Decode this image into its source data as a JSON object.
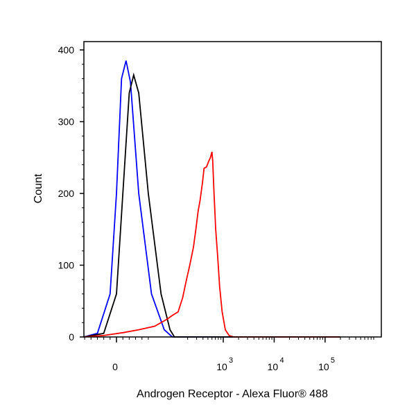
{
  "chart_data": {
    "type": "line",
    "title": "",
    "xlabel": "Androgen Receptor - Alexa Fluor® 488",
    "ylabel": "Count",
    "x_scale": "biexponential",
    "ylim": [
      0,
      400
    ],
    "x_ticks": [
      {
        "value": 0,
        "label": "0",
        "exponent": ""
      },
      {
        "value": 1000,
        "label": "10",
        "exponent": "3"
      },
      {
        "value": 10000,
        "label": "10",
        "exponent": "4"
      },
      {
        "value": 100000,
        "label": "10",
        "exponent": "5"
      }
    ],
    "y_ticks": [
      0,
      100,
      200,
      300,
      400
    ],
    "grid": false,
    "legend": "none",
    "series": [
      {
        "color": "#0000ff",
        "points": [
          [
            -60,
            0
          ],
          [
            -30,
            5
          ],
          [
            -10,
            60
          ],
          [
            0,
            200
          ],
          [
            8,
            360
          ],
          [
            15,
            385
          ],
          [
            22,
            355
          ],
          [
            35,
            200
          ],
          [
            55,
            60
          ],
          [
            75,
            10
          ],
          [
            100,
            0
          ],
          [
            1000,
            0
          ],
          [
            100000,
            0
          ],
          [
            200000,
            0
          ]
        ]
      },
      {
        "color": "#000000",
        "points": [
          [
            -60,
            0
          ],
          [
            -20,
            5
          ],
          [
            0,
            60
          ],
          [
            10,
            200
          ],
          [
            20,
            340
          ],
          [
            27,
            365
          ],
          [
            35,
            340
          ],
          [
            50,
            200
          ],
          [
            70,
            60
          ],
          [
            90,
            10
          ],
          [
            110,
            0
          ],
          [
            1000,
            0
          ],
          [
            100000,
            0
          ],
          [
            200000,
            0
          ]
        ]
      },
      {
        "color": "#ff0000",
        "points": [
          [
            -60,
            0
          ],
          [
            -20,
            2
          ],
          [
            10,
            6
          ],
          [
            35,
            10
          ],
          [
            60,
            15
          ],
          [
            80,
            25
          ],
          [
            100,
            30
          ],
          [
            130,
            35
          ],
          [
            160,
            55
          ],
          [
            190,
            80
          ],
          [
            220,
            100
          ],
          [
            260,
            125
          ],
          [
            290,
            150
          ],
          [
            320,
            175
          ],
          [
            350,
            190
          ],
          [
            390,
            215
          ],
          [
            420,
            235
          ],
          [
            470,
            237
          ],
          [
            520,
            245
          ],
          [
            560,
            250
          ],
          [
            600,
            258
          ],
          [
            620,
            245
          ],
          [
            660,
            200
          ],
          [
            710,
            150
          ],
          [
            780,
            110
          ],
          [
            850,
            70
          ],
          [
            950,
            35
          ],
          [
            1100,
            10
          ],
          [
            1300,
            2
          ],
          [
            1600,
            0
          ],
          [
            100000,
            0
          ],
          [
            200000,
            0
          ]
        ]
      }
    ]
  }
}
